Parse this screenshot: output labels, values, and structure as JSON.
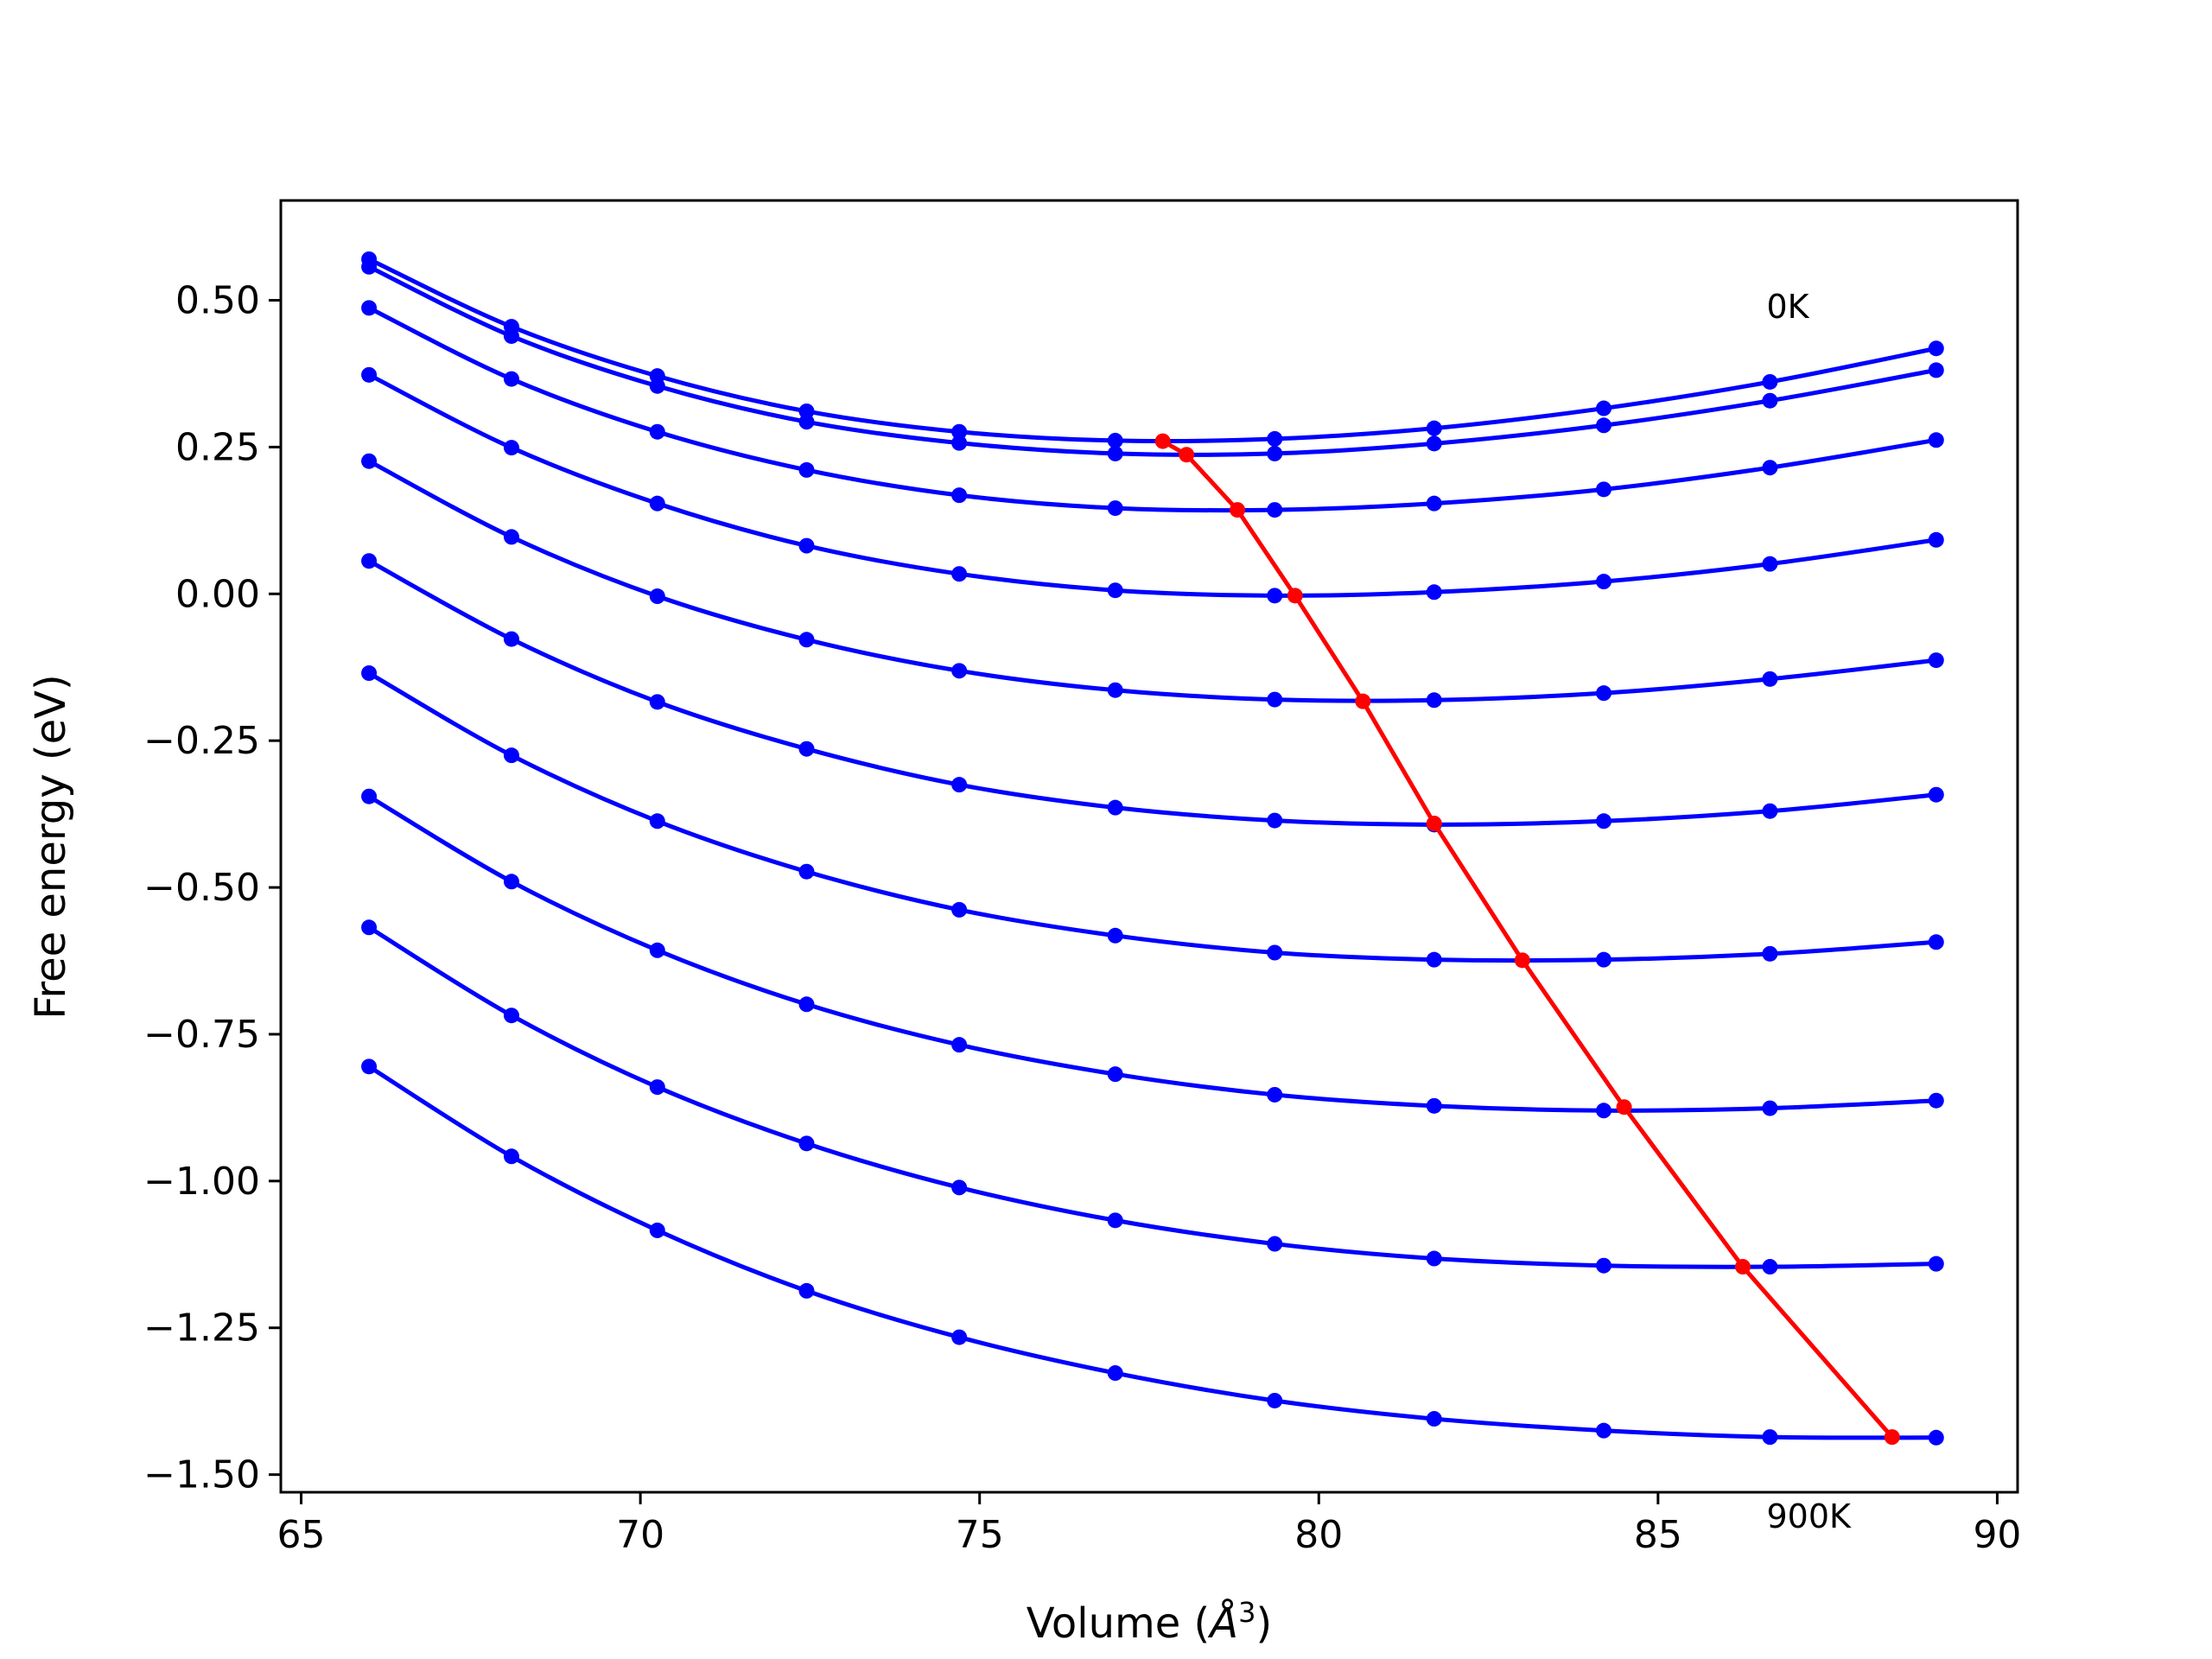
{
  "chart_data": {
    "type": "line",
    "title": "",
    "xlabel": "Volume (",
    "xlabel_symbol": "Å",
    "xlabel_exp": "3",
    "xlabel_close": ")",
    "ylabel": "Free energy (eV)",
    "xlim": [
      64.7,
      90.3
    ],
    "ylim": [
      -1.53,
      0.67
    ],
    "xticks": [
      65,
      70,
      75,
      80,
      85,
      90
    ],
    "xtick_labels": [
      "65",
      "70",
      "75",
      "80",
      "85",
      "90"
    ],
    "yticks": [
      0.5,
      0.25,
      0.0,
      -0.25,
      -0.5,
      -0.75,
      -1.0,
      -1.25,
      -1.5
    ],
    "ytick_labels": [
      "0.50",
      "0.25",
      "0.00",
      "−0.25",
      "−0.50",
      "−0.75",
      "−1.00",
      "−1.25",
      "−1.50"
    ],
    "grid": false,
    "annotations": [
      {
        "text": "0K",
        "x": 86.6,
        "y": 0.47
      },
      {
        "text": "900K",
        "x": 86.6,
        "y": -1.59
      }
    ],
    "colors": {
      "curves": "#0000ff",
      "minima": "#ff0000",
      "frame": "#000000"
    },
    "x": [
      66.0,
      68.1,
      70.25,
      72.45,
      74.7,
      77.0,
      79.35,
      81.7,
      84.2,
      86.65,
      89.1
    ],
    "series": [
      {
        "values": [
          0.57,
          0.455,
          0.371,
          0.311,
          0.276,
          0.261,
          0.264,
          0.282,
          0.316,
          0.361,
          0.418
        ]
      },
      {
        "values": [
          0.557,
          0.439,
          0.354,
          0.293,
          0.257,
          0.239,
          0.239,
          0.256,
          0.287,
          0.329,
          0.381
        ]
      },
      {
        "values": [
          0.487,
          0.366,
          0.276,
          0.211,
          0.168,
          0.146,
          0.143,
          0.154,
          0.178,
          0.215,
          0.262
        ]
      },
      {
        "values": [
          0.373,
          0.249,
          0.154,
          0.082,
          0.034,
          0.006,
          -0.003,
          0.003,
          0.021,
          0.051,
          0.092
        ]
      },
      {
        "values": [
          0.226,
          0.097,
          -0.004,
          -0.078,
          -0.131,
          -0.164,
          -0.18,
          -0.181,
          -0.169,
          -0.145,
          -0.113
        ]
      },
      {
        "values": [
          0.056,
          -0.077,
          -0.184,
          -0.264,
          -0.325,
          -0.364,
          -0.386,
          -0.393,
          -0.387,
          -0.37,
          -0.342
        ]
      },
      {
        "values": [
          -0.135,
          -0.275,
          -0.387,
          -0.473,
          -0.538,
          -0.582,
          -0.611,
          -0.623,
          -0.623,
          -0.613,
          -0.593
        ]
      },
      {
        "values": [
          -0.345,
          -0.49,
          -0.607,
          -0.699,
          -0.768,
          -0.818,
          -0.853,
          -0.872,
          -0.88,
          -0.876,
          -0.863
        ]
      },
      {
        "values": [
          -0.568,
          -0.718,
          -0.84,
          -0.936,
          -1.011,
          -1.067,
          -1.107,
          -1.132,
          -1.144,
          -1.146,
          -1.141
        ]
      },
      {
        "values": [
          -0.805,
          -0.958,
          -1.084,
          -1.187,
          -1.266,
          -1.327,
          -1.374,
          -1.405,
          -1.425,
          -1.436,
          -1.437
        ]
      }
    ],
    "minima_series": {
      "x": [
        77.7,
        78.05,
        78.8,
        79.65,
        80.65,
        81.7,
        83.0,
        84.5,
        86.25,
        88.45
      ],
      "y": [
        0.26,
        0.237,
        0.143,
        -0.003,
        -0.183,
        -0.391,
        -0.624,
        -0.874,
        -1.146,
        -1.436
      ]
    }
  }
}
